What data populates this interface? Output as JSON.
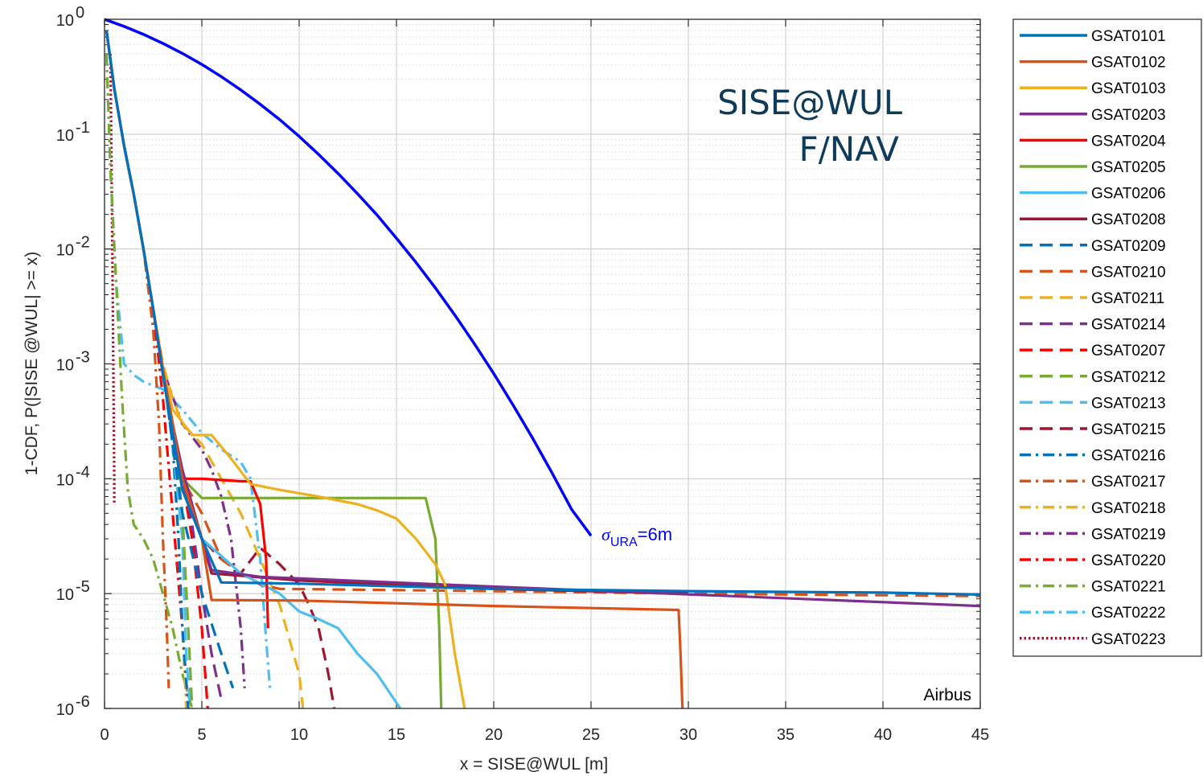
{
  "chart_data": {
    "type": "line",
    "title": "",
    "xlabel": "x = SISE@WUL [m]",
    "ylabel": "1-CDF,  P(|SISE @WUL| >= x)",
    "xlim": [
      0,
      45
    ],
    "ylim": [
      1e-06,
      1
    ],
    "yscale": "log",
    "grid": true,
    "legend_position": "outside-right",
    "x_ticks": [
      "0",
      "5",
      "10",
      "15",
      "20",
      "25",
      "30",
      "35",
      "40",
      "45"
    ],
    "y_ticks": [
      {
        "base": "10",
        "exp": "0",
        "value": 1
      },
      {
        "base": "10",
        "exp": "-1",
        "value": 0.1
      },
      {
        "base": "10",
        "exp": "-2",
        "value": 0.01
      },
      {
        "base": "10",
        "exp": "-3",
        "value": 0.001
      },
      {
        "base": "10",
        "exp": "-4",
        "value": 0.0001
      },
      {
        "base": "10",
        "exp": "-5",
        "value": 1e-05
      },
      {
        "base": "10",
        "exp": "-6",
        "value": 1e-06
      }
    ],
    "annotations": {
      "title_line1": "SISE@WUL",
      "title_line2": "F/NAV",
      "sigma_symbol": "σ",
      "sigma_sub": "URA",
      "sigma_rest": "=6m",
      "source": "Airbus"
    },
    "reference": {
      "color": "#0000ff",
      "x": [
        0,
        1,
        2,
        3,
        4,
        5,
        6,
        7,
        8,
        9,
        10,
        11,
        12,
        13,
        14,
        15,
        16,
        17,
        18,
        19,
        20,
        21,
        22,
        23,
        24,
        25
      ],
      "y": [
        1,
        0.868,
        0.74,
        0.617,
        0.505,
        0.405,
        0.317,
        0.243,
        0.182,
        0.134,
        0.0956,
        0.0667,
        0.0455,
        0.0303,
        0.0198,
        0.0124,
        0.00766,
        0.00458,
        0.00266,
        0.0015,
        0.000823,
        0.000436,
        0.000225,
        0.000112,
        5.41e-05,
        3.19e-05
      ]
    },
    "series": [
      {
        "name": "GSAT0101",
        "color": "#0072bd",
        "dash": "solid",
        "x": [
          0.1,
          0.5,
          1,
          1.5,
          2,
          2.5,
          3,
          3.5,
          4,
          5,
          6,
          10,
          20,
          30,
          40,
          45
        ],
        "y": [
          0.8,
          0.25,
          0.08,
          0.03,
          0.01,
          0.003,
          0.0008,
          0.00025,
          8e-05,
          3e-05,
          1.25e-05,
          1.22e-05,
          1.1e-05,
          1.05e-05,
          1.02e-05,
          9.8e-06
        ]
      },
      {
        "name": "GSAT0102",
        "color": "#d95319",
        "dash": "solid",
        "x": [
          0.1,
          0.5,
          1,
          1.5,
          2,
          2.5,
          3,
          3.5,
          4,
          5,
          5.5,
          10,
          20,
          29.5,
          29.6,
          29.7
        ],
        "y": [
          0.8,
          0.25,
          0.08,
          0.03,
          0.01,
          0.003,
          0.0009,
          0.0003,
          0.0001,
          3e-05,
          8.8e-06,
          8.7e-06,
          7.8e-06,
          7.2e-06,
          3e-06,
          1e-06
        ]
      },
      {
        "name": "GSAT0103",
        "color": "#edb120",
        "dash": "solid",
        "x": [
          0.1,
          0.5,
          1,
          1.5,
          2,
          2.5,
          3,
          3.5,
          4.5,
          5.5,
          6.5,
          7.5,
          9,
          11,
          13,
          14,
          15,
          16,
          17,
          17.5,
          18,
          18.5
        ],
        "y": [
          0.8,
          0.25,
          0.08,
          0.03,
          0.01,
          0.003,
          0.0009,
          0.0004,
          0.00024,
          0.00024,
          0.00015,
          9e-05,
          8e-05,
          7e-05,
          6e-05,
          5.3e-05,
          4.5e-05,
          3e-05,
          1.8e-05,
          1.2e-05,
          3e-06,
          1e-06
        ]
      },
      {
        "name": "GSAT0203",
        "color": "#7e2f8e",
        "dash": "solid",
        "x": [
          0.1,
          0.5,
          1,
          1.5,
          2,
          2.5,
          3,
          3.5,
          4,
          4.5,
          5,
          5.5,
          8,
          20,
          45
        ],
        "y": [
          0.8,
          0.25,
          0.08,
          0.03,
          0.01,
          0.003,
          0.0009,
          0.0003,
          0.00012,
          6e-05,
          3e-05,
          1.6e-05,
          1.4e-05,
          1.15e-05,
          7.8e-06
        ]
      },
      {
        "name": "GSAT0204",
        "color": "#ff0000",
        "dash": "solid",
        "x": [
          0.1,
          0.5,
          1,
          1.5,
          2,
          2.5,
          3,
          3.5,
          4,
          5,
          7,
          7.5,
          8,
          8.3,
          8.4
        ],
        "y": [
          0.8,
          0.25,
          0.08,
          0.03,
          0.01,
          0.003,
          0.0009,
          0.0003,
          0.0001,
          0.0001,
          9.5e-05,
          9.5e-05,
          6e-05,
          2e-05,
          5e-06
        ]
      },
      {
        "name": "GSAT0205",
        "color": "#77ac30",
        "dash": "solid",
        "x": [
          0.1,
          0.5,
          1,
          1.5,
          2,
          2.5,
          3,
          3.5,
          4,
          5,
          16.5,
          17,
          17.2,
          17.3
        ],
        "y": [
          0.8,
          0.25,
          0.08,
          0.03,
          0.01,
          0.003,
          0.0009,
          0.0003,
          0.0001,
          6.8e-05,
          6.8e-05,
          3e-05,
          5e-06,
          1e-06
        ]
      },
      {
        "name": "GSAT0206",
        "color": "#4dbeee",
        "dash": "solid",
        "x": [
          0.1,
          0.5,
          1,
          1.5,
          2,
          2.5,
          3,
          3.5,
          4,
          5,
          7,
          9,
          10,
          11,
          12,
          13,
          14,
          15.2
        ],
        "y": [
          0.8,
          0.25,
          0.08,
          0.03,
          0.01,
          0.003,
          0.0009,
          0.0003,
          8e-05,
          3e-05,
          1.5e-05,
          1e-05,
          7e-06,
          6e-06,
          5e-06,
          3e-06,
          2e-06,
          1e-06
        ]
      },
      {
        "name": "GSAT0208",
        "color": "#a2142f",
        "dash": "solid",
        "x": [
          0.1,
          0.5,
          1,
          1.5,
          2,
          2.5,
          3,
          3.5,
          4,
          5,
          5.5,
          10,
          20,
          30
        ],
        "y": [
          0.8,
          0.25,
          0.08,
          0.03,
          0.01,
          0.003,
          0.0009,
          0.0003,
          0.0001,
          3e-05,
          1.5e-05,
          1.3e-05,
          1.1e-05,
          1e-05
        ]
      },
      {
        "name": "GSAT0209",
        "color": "#0072bd",
        "dash": "dash",
        "x": [
          0.1,
          0.5,
          1,
          1.5,
          2,
          2.5,
          3,
          3.5,
          4,
          5,
          6,
          6.6
        ],
        "y": [
          0.8,
          0.25,
          0.08,
          0.03,
          0.01,
          0.003,
          0.0009,
          0.0002,
          5e-05,
          1e-05,
          3e-06,
          1.5e-06
        ]
      },
      {
        "name": "GSAT0210",
        "color": "#d95319",
        "dash": "dash",
        "x": [
          0.1,
          0.5,
          1,
          1.5,
          2,
          2.5,
          3,
          3.5,
          4,
          5,
          6,
          7,
          8,
          9,
          20,
          30,
          45
        ],
        "y": [
          0.8,
          0.25,
          0.08,
          0.03,
          0.01,
          0.003,
          0.0009,
          0.0003,
          0.0001,
          5e-05,
          2e-05,
          1.5e-05,
          1.2e-05,
          1.1e-05,
          1.05e-05,
          1e-05,
          9.5e-06
        ]
      },
      {
        "name": "GSAT0211",
        "color": "#edb120",
        "dash": "dash",
        "x": [
          0.1,
          0.5,
          1,
          1.5,
          2,
          2.5,
          3,
          3.5,
          4,
          5,
          6,
          7,
          8,
          9,
          9.5,
          10,
          10.2
        ],
        "y": [
          0.8,
          0.25,
          0.08,
          0.03,
          0.01,
          0.003,
          0.001,
          0.0005,
          0.0003,
          0.0002,
          0.0001,
          5e-05,
          2e-05,
          8e-06,
          4e-06,
          2e-06,
          1e-06
        ]
      },
      {
        "name": "GSAT0214",
        "color": "#7e2f8e",
        "dash": "dash",
        "x": [
          0.1,
          0.5,
          1,
          1.5,
          2,
          2.5,
          3,
          3.5,
          4,
          4.5,
          5,
          5.5,
          6
        ],
        "y": [
          0.8,
          0.25,
          0.08,
          0.03,
          0.01,
          0.003,
          0.0009,
          0.0003,
          0.0001,
          4e-05,
          1e-05,
          3e-06,
          1.2e-06
        ]
      },
      {
        "name": "GSAT0207",
        "color": "#ff0000",
        "dash": "dash",
        "x": [
          0.1,
          0.5,
          1,
          1.5,
          2,
          2.5,
          3,
          3.5,
          4,
          4.5,
          5,
          5.3
        ],
        "y": [
          0.8,
          0.25,
          0.08,
          0.03,
          0.01,
          0.003,
          0.0009,
          0.0003,
          0.0001,
          3e-05,
          5e-06,
          1e-06
        ]
      },
      {
        "name": "GSAT0212",
        "color": "#77ac30",
        "dash": "dash",
        "x": [
          0.1,
          0.5,
          1,
          1.5,
          2,
          2.5,
          3,
          3.5,
          4,
          4.3,
          4.5
        ],
        "y": [
          0.8,
          0.25,
          0.08,
          0.03,
          0.01,
          0.003,
          0.0009,
          0.0003,
          5e-05,
          5e-06,
          1e-06
        ]
      },
      {
        "name": "GSAT0213",
        "color": "#4dbeee",
        "dash": "dash",
        "x": [
          0.1,
          0.5,
          1,
          1.5,
          2,
          2.5,
          3,
          3.5,
          4,
          4.2,
          4.4
        ],
        "y": [
          0.8,
          0.25,
          0.08,
          0.03,
          0.01,
          0.003,
          0.0009,
          0.0002,
          3e-05,
          3e-06,
          1e-06
        ]
      },
      {
        "name": "GSAT0215",
        "color": "#a2142f",
        "dash": "dash",
        "x": [
          0.1,
          0.5,
          1,
          1.5,
          2,
          2.5,
          3,
          4,
          5,
          6,
          7,
          8,
          9,
          10,
          10.5,
          11,
          11.5,
          11.8
        ],
        "y": [
          0.8,
          0.25,
          0.08,
          0.03,
          0.01,
          0.003,
          0.0009,
          0.0001,
          3e-05,
          2e-05,
          1.5e-05,
          2.5e-05,
          1.8e-05,
          1.2e-05,
          8e-06,
          5e-06,
          2e-06,
          1e-06
        ]
      },
      {
        "name": "GSAT0216",
        "color": "#0072bd",
        "dash": "dashdot",
        "x": [
          0.1,
          0.5,
          1,
          1.5,
          2,
          2.5,
          3,
          3.5,
          3.8,
          4,
          4.3
        ],
        "y": [
          0.8,
          0.25,
          0.08,
          0.03,
          0.01,
          0.003,
          0.0009,
          0.0002,
          3e-05,
          5e-06,
          1e-06
        ]
      },
      {
        "name": "GSAT0217",
        "color": "#d95319",
        "dash": "dashdot",
        "x": [
          0.1,
          0.5,
          1,
          1.5,
          2,
          2.5,
          2.8,
          3,
          3.2,
          3.3
        ],
        "y": [
          0.8,
          0.25,
          0.08,
          0.03,
          0.01,
          0.002,
          0.0003,
          3e-05,
          5e-06,
          1.5e-06
        ]
      },
      {
        "name": "GSAT0218",
        "color": "#edb120",
        "dash": "dashdot",
        "x": [
          0.1,
          0.5,
          1,
          1.5,
          2,
          2.5,
          3,
          3.5,
          3.8,
          4,
          4.2
        ],
        "y": [
          0.8,
          0.25,
          0.08,
          0.03,
          0.01,
          0.003,
          0.0009,
          0.0002,
          3e-05,
          5e-06,
          1e-06
        ]
      },
      {
        "name": "GSAT0219",
        "color": "#7e2f8e",
        "dash": "dashdot",
        "x": [
          0.1,
          0.5,
          1,
          1.5,
          2,
          2.5,
          3,
          4,
          5,
          5.5,
          6,
          6.5,
          7,
          7.2
        ],
        "y": [
          0.8,
          0.25,
          0.08,
          0.03,
          0.01,
          0.003,
          0.0009,
          0.0003,
          0.00018,
          0.00012,
          7e-05,
          3e-05,
          5e-06,
          1.5e-06
        ]
      },
      {
        "name": "GSAT0220",
        "color": "#ff0000",
        "dash": "dashdot",
        "x": [
          0.1,
          0.5,
          1,
          1.5,
          2,
          2.5,
          3,
          3.5,
          4,
          4.3
        ],
        "y": [
          0.8,
          0.25,
          0.08,
          0.03,
          0.01,
          0.003,
          0.0005,
          5e-05,
          5e-06,
          1e-06
        ]
      },
      {
        "name": "GSAT0221",
        "color": "#77ac30",
        "dash": "dashdot",
        "x": [
          0.1,
          0.3,
          0.6,
          0.9,
          1.2,
          1.5,
          2,
          2.5,
          3,
          3.5,
          4,
          4.5
        ],
        "y": [
          0.5,
          0.05,
          0.005,
          0.0005,
          8e-05,
          4e-05,
          3e-05,
          2e-05,
          1e-05,
          5e-06,
          2e-06,
          1e-06
        ]
      },
      {
        "name": "GSAT0222",
        "color": "#4dbeee",
        "dash": "dashdot",
        "x": [
          0.1,
          0.3,
          0.6,
          1,
          1.5,
          2,
          3,
          4,
          5,
          6,
          7,
          7.5,
          8,
          8.3,
          8.5
        ],
        "y": [
          0.5,
          0.05,
          0.005,
          0.001,
          0.0008,
          0.0007,
          0.0006,
          0.0004,
          0.00025,
          0.00018,
          0.00014,
          0.0001,
          2e-05,
          4e-06,
          1.5e-06
        ]
      },
      {
        "name": "GSAT0223",
        "color": "#a2142f",
        "dash": "dot",
        "x": [
          0.3,
          0.4,
          0.45,
          0.5,
          0.5
        ],
        "y": [
          0.5,
          0.01,
          0.001,
          0.0001,
          6e-05
        ]
      }
    ]
  }
}
